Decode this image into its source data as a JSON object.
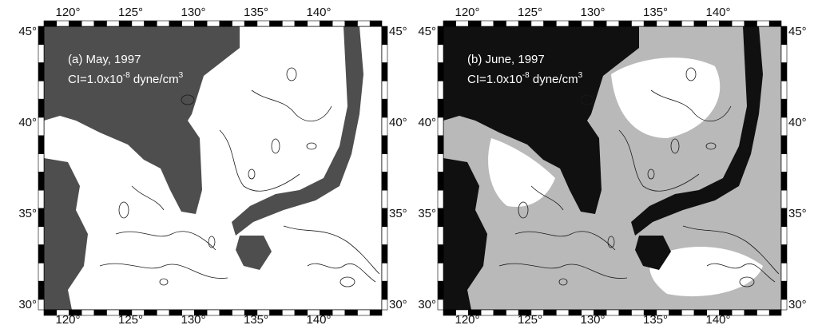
{
  "panels": [
    {
      "title": "(a) May, 1997",
      "ci": {
        "base": "CI=1.0x10",
        "exponent": "-8",
        "unit": " dyne/cm",
        "unit_exponent": "3"
      }
    },
    {
      "title": "(b) June, 1997",
      "ci": {
        "base": "CI=1.0x10",
        "exponent": "-8",
        "unit": " dyne/cm",
        "unit_exponent": "3"
      }
    }
  ],
  "longitude_ticks": [
    "120°",
    "125°",
    "130°",
    "135°",
    "140°"
  ],
  "latitude_ticks": [
    "30°",
    "35°",
    "40°",
    "45°"
  ]
}
